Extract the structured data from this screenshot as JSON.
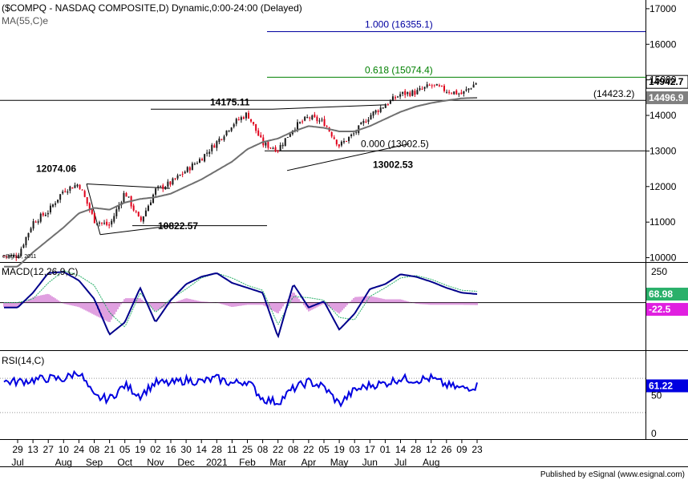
{
  "header": {
    "title": "($COMPQ - NASDAQ COMPOSITE,D) Dynamic,0:00-24:00 (Delayed)",
    "ma_label": "MA(55,C)e"
  },
  "footer": {
    "publisher": "Published by eSignal (www.esignal.com)",
    "watermark": "eSignal, 2011"
  },
  "colors": {
    "up": "#1a1a1a",
    "down": "#e0001a",
    "ma": "#707070",
    "macd": "#00008b",
    "signal": "#2ab06a",
    "histogram": "#c040c0",
    "rsi": "#0000e0",
    "fib": "#0000a0",
    "fib_green": "#008000",
    "price_box": "#000000",
    "ma_box": "#808080",
    "macd_box": "#2ab06a",
    "hist_box": "#e020e0",
    "rsi_box": "#0000e0"
  },
  "x_axis": {
    "day_ticks": [
      "29",
      "13",
      "27",
      "10",
      "24",
      "08",
      "21",
      "05",
      "19",
      "02",
      "16",
      "30",
      "14",
      "28",
      "11",
      "25",
      "08",
      "22",
      "08",
      "22",
      "05",
      "19",
      "03",
      "17",
      "01",
      "14",
      "28",
      "12",
      "26",
      "09",
      "23"
    ],
    "month_labels": [
      {
        "text": "Jul",
        "tick": 0
      },
      {
        "text": "Aug",
        "tick": 3
      },
      {
        "text": "Sep",
        "tick": 5
      },
      {
        "text": "Oct",
        "tick": 7
      },
      {
        "text": "Nov",
        "tick": 9
      },
      {
        "text": "Dec",
        "tick": 11
      },
      {
        "text": "2021",
        "tick": 13
      },
      {
        "text": "Feb",
        "tick": 15
      },
      {
        "text": "Mar",
        "tick": 17
      },
      {
        "text": "Apr",
        "tick": 19
      },
      {
        "text": "May",
        "tick": 21
      },
      {
        "text": "Jun",
        "tick": 23
      },
      {
        "text": "Jul",
        "tick": 25
      },
      {
        "text": "Aug",
        "tick": 27
      }
    ]
  },
  "chart_data": [
    {
      "type": "candlestick",
      "title": "($COMPQ - NASDAQ COMPOSITE,D) Dynamic,0:00-24:00 (Delayed)",
      "ylim": [
        9900,
        17200
      ],
      "yticks": [
        "17000",
        "16000",
        "15000",
        "14000",
        "13000",
        "12000",
        "11000",
        "10000"
      ],
      "ytick_values": [
        17000,
        16000,
        15000,
        14000,
        13000,
        12000,
        11000,
        10000
      ],
      "price_path_by_tick": [
        10050,
        11000,
        11300,
        11900,
        12074.06,
        11050,
        10900,
        11850,
        11000,
        11900,
        12100,
        12450,
        12800,
        13250,
        13750,
        14050,
        13200,
        13050,
        13650,
        13950,
        13800,
        13150,
        13500,
        14000,
        14300,
        14600,
        14650,
        14850,
        14700,
        14600,
        14942.7
      ],
      "ma_path_by_tick": [
        9750,
        10150,
        10500,
        10850,
        11250,
        11400,
        11350,
        11550,
        11650,
        11700,
        11800,
        12000,
        12200,
        12450,
        12700,
        13050,
        13250,
        13350,
        13550,
        13700,
        13650,
        13550,
        13550,
        13700,
        13900,
        14100,
        14250,
        14350,
        14420,
        14480,
        14496.9
      ],
      "current_price": "14942.7",
      "ma_value": "14496.9",
      "fib_levels": [
        {
          "label": "1.000 (16355.1)",
          "value": 16355.1,
          "color": "fib"
        },
        {
          "label": "0.618 (15074.4)",
          "value": 15074.4,
          "color": "fib_green"
        },
        {
          "label": "0.000 (13002.5)",
          "value": 13002.5,
          "color": "black"
        }
      ],
      "level_label": "(14423.2)",
      "level_value": 14423.2,
      "annotations": [
        {
          "text": "14175.11",
          "value": 14175.11
        },
        {
          "text": "12074.06",
          "value": 12074.06
        },
        {
          "text": "13002.53",
          "value": 13002.53
        },
        {
          "text": "10822.57",
          "value": 10822.57
        }
      ]
    },
    {
      "type": "line",
      "title": "MACD(12,26,9,C)",
      "ylim": [
        -380,
        310
      ],
      "yticks": [
        "250"
      ],
      "ytick_values": [
        250
      ],
      "macd_by_tick": [
        -40,
        80,
        240,
        250,
        180,
        30,
        -260,
        -160,
        120,
        -160,
        20,
        150,
        210,
        240,
        160,
        120,
        80,
        -280,
        150,
        -40,
        10,
        -220,
        -90,
        110,
        150,
        230,
        210,
        170,
        120,
        80,
        68.98
      ],
      "signal_by_tick": [
        0,
        30,
        160,
        260,
        220,
        140,
        -80,
        -200,
        80,
        -80,
        30,
        110,
        200,
        240,
        200,
        140,
        100,
        -180,
        50,
        40,
        20,
        -120,
        -140,
        50,
        120,
        200,
        220,
        190,
        140,
        100,
        91.5
      ],
      "macd_value": "68.98",
      "hist_value": "-22.5"
    },
    {
      "type": "line",
      "title": "RSI(14,C)",
      "ylim": [
        0,
        100
      ],
      "yticks": [
        "50"
      ],
      "ytick_values": [
        50
      ],
      "reference_levels": [
        70,
        30
      ],
      "rsi_by_tick": [
        66,
        68,
        70,
        69,
        78,
        48,
        46,
        62,
        50,
        65,
        64,
        68,
        66,
        70,
        64,
        67,
        46,
        42,
        58,
        66,
        60,
        40,
        56,
        62,
        64,
        70,
        68,
        70,
        62,
        58,
        61.22
      ],
      "rsi_value": "61.22"
    }
  ]
}
